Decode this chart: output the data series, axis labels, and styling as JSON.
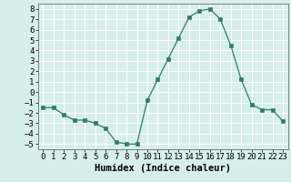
{
  "x": [
    0,
    1,
    2,
    3,
    4,
    5,
    6,
    7,
    8,
    9,
    10,
    11,
    12,
    13,
    14,
    15,
    16,
    17,
    18,
    19,
    20,
    21,
    22,
    23
  ],
  "y": [
    -1.5,
    -1.5,
    -2.2,
    -2.7,
    -2.7,
    -3.0,
    -3.5,
    -4.8,
    -5.0,
    -5.0,
    -0.8,
    1.2,
    3.2,
    5.2,
    7.2,
    7.8,
    8.0,
    7.0,
    4.5,
    1.2,
    -1.2,
    -1.7,
    -1.7,
    -2.8
  ],
  "xlabel": "Humidex (Indice chaleur)",
  "xlim": [
    -0.5,
    23.5
  ],
  "ylim": [
    -5.5,
    8.5
  ],
  "yticks": [
    -5,
    -4,
    -3,
    -2,
    -1,
    0,
    1,
    2,
    3,
    4,
    5,
    6,
    7,
    8
  ],
  "xticks": [
    0,
    1,
    2,
    3,
    4,
    5,
    6,
    7,
    8,
    9,
    10,
    11,
    12,
    13,
    14,
    15,
    16,
    17,
    18,
    19,
    20,
    21,
    22,
    23
  ],
  "line_color": "#2e7d6e",
  "marker": "s",
  "marker_size": 2.5,
  "bg_color": "#d6eeee",
  "grid_color": "#ffffff",
  "tick_fontsize": 6.5,
  "xlabel_fontsize": 7.5
}
